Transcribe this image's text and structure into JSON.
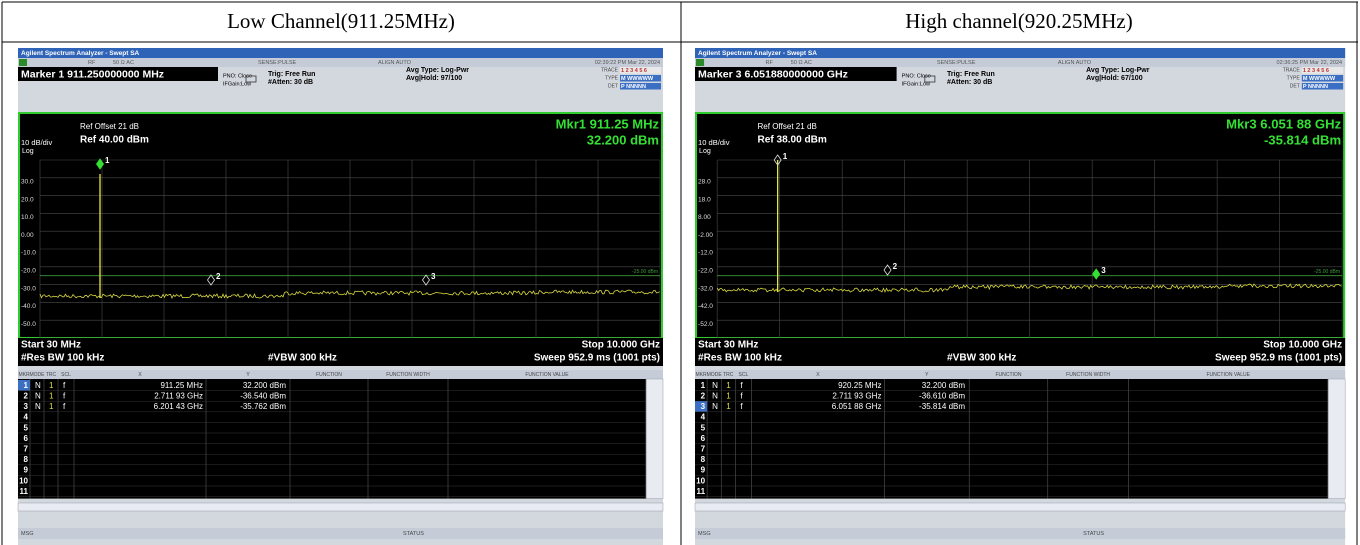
{
  "header": [
    "Low Channel(911.25MHz)",
    "High channel(920.25MHz)"
  ],
  "panels": [
    {
      "app_title": "Agilent Spectrum Analyzer - Swept SA",
      "status_bar": [
        "RF",
        "50 Ω AC",
        "SENSE:PULSE",
        "ALIGN AUTO",
        "02:39:22 PM Mar 22, 2024"
      ],
      "marker_readout": "Marker 1 911.250000000 MHz",
      "settings": [
        "PNO: Close",
        "IFGain:Low",
        "Trig: Free Run",
        "#Atten: 30 dB",
        "Avg Type: Log-Pwr",
        "Avg|Hold: 97/100"
      ],
      "trace_info": [
        [
          "TRACE",
          "1 2 3 4 5 6"
        ],
        [
          "TYPE",
          "M WWWWW"
        ],
        [
          "DET",
          "P NNNNN"
        ]
      ],
      "ref_offset": "Ref Offset 21 dB",
      "scale": "10 dB/div",
      "ref_level": "Ref 40.00 dBm",
      "log": "Log",
      "marker_freq": "Mkr1 911.25 MHz",
      "marker_amp": "32.200 dBm",
      "y_labels": [
        "30.0",
        "20.0",
        "10.0",
        "0.00",
        "-10.0",
        "-20.0",
        "-30.0",
        "-40.0",
        "-50.0"
      ],
      "display_line": "-25.00 dBm",
      "marker_labels": [
        "1",
        "2",
        "3"
      ],
      "footer": {
        "start": "Start 30 MHz",
        "stop": "Stop 10.000 GHz",
        "rbw": "#Res BW 100 kHz",
        "vbw": "#VBW 300 kHz",
        "sweep": "Sweep  952.9 ms (1001 pts)"
      },
      "table_header": [
        "MKR",
        "MODE",
        "TRC",
        "SCL",
        "X",
        "Y",
        "FUNCTION",
        "FUNCTION WIDTH",
        "FUNCTION VALUE"
      ],
      "table_rows": [
        [
          "1",
          "N",
          "1",
          "f",
          "911.25 MHz",
          "32.200 dBm"
        ],
        [
          "2",
          "N",
          "1",
          "f",
          "2.711 93 GHz",
          "-36.540 dBm"
        ],
        [
          "3",
          "N",
          "1",
          "f",
          "6.201 43 GHz",
          "-35.762 dBm"
        ],
        [
          "4"
        ],
        [
          "5"
        ],
        [
          "6"
        ],
        [
          "7"
        ],
        [
          "8"
        ],
        [
          "9"
        ],
        [
          "10"
        ],
        [
          "11"
        ]
      ],
      "selected_row": 0,
      "msg": "MSG",
      "status": "STATUS"
    },
    {
      "app_title": "Agilent Spectrum Analyzer - Swept SA",
      "status_bar": [
        "RF",
        "50 Ω AC",
        "SENSE:PULSE",
        "ALIGN AUTO",
        "02:36:25 PM Mar 22, 2024"
      ],
      "marker_readout": "Marker 3 6.051880000000 GHz",
      "settings": [
        "PNO: Close",
        "IFGain:Low",
        "Trig: Free Run",
        "#Atten: 30 dB",
        "Avg Type: Log-Pwr",
        "Avg|Hold: 67/100"
      ],
      "trace_info": [
        [
          "TRACE",
          "1 2 3 4 5 6"
        ],
        [
          "TYPE",
          "M WWWWW"
        ],
        [
          "DET",
          "P NNNNN"
        ]
      ],
      "ref_offset": "Ref Offset 21 dB",
      "scale": "10 dB/div",
      "ref_level": "Ref 38.00 dBm",
      "log": "Log",
      "marker_freq": "Mkr3 6.051 88 GHz",
      "marker_amp": "-35.814 dBm",
      "y_labels": [
        "28.0",
        "18.0",
        "8.00",
        "-2.00",
        "-12.0",
        "-22.0",
        "-32.0",
        "-42.0",
        "-52.0"
      ],
      "display_line": "-25.00 dBm",
      "marker_labels": [
        "1",
        "2",
        "3"
      ],
      "footer": {
        "start": "Start 30 MHz",
        "stop": "Stop 10.000 GHz",
        "rbw": "#Res BW 100 kHz",
        "vbw": "#VBW 300 kHz",
        "sweep": "Sweep  952.9 ms (1001 pts)"
      },
      "table_header": [
        "MKR",
        "MODE",
        "TRC",
        "SCL",
        "X",
        "Y",
        "FUNCTION",
        "FUNCTION WIDTH",
        "FUNCTION VALUE"
      ],
      "table_rows": [
        [
          "1",
          "N",
          "1",
          "f",
          "920.25 MHz",
          "32.200 dBm"
        ],
        [
          "2",
          "N",
          "1",
          "f",
          "2.711 93 GHz",
          "-36.610 dBm"
        ],
        [
          "3",
          "N",
          "1",
          "f",
          "6.051 88 GHz",
          "-35.814 dBm"
        ],
        [
          "4"
        ],
        [
          "5"
        ],
        [
          "6"
        ],
        [
          "7"
        ],
        [
          "8"
        ],
        [
          "9"
        ],
        [
          "10"
        ],
        [
          "11"
        ]
      ],
      "selected_row": 2,
      "msg": "MSG",
      "status": "STATUS"
    }
  ]
}
